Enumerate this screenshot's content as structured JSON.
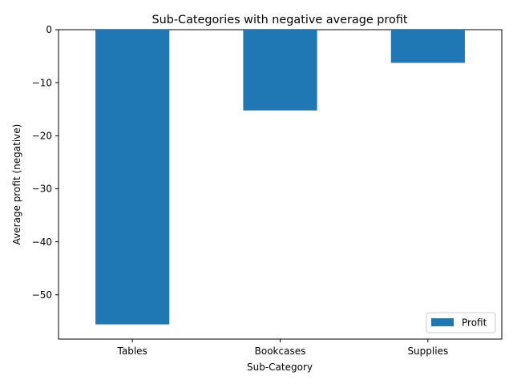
{
  "chart_data": {
    "type": "bar",
    "title": "Sub-Categories with negative average profit",
    "xlabel": "Sub-Category",
    "ylabel": "Average profit (negative)",
    "categories": [
      "Tables",
      "Bookcases",
      "Supplies"
    ],
    "series": [
      {
        "name": "Profit",
        "values": [
          -55.57,
          -15.23,
          -6.26
        ],
        "color": "#1f77b4"
      }
    ],
    "ylim": [
      -58.35,
      0
    ],
    "yticks": [
      0,
      -10,
      -20,
      -30,
      -40,
      -50
    ],
    "ytick_labels": [
      "0",
      "−10",
      "−20",
      "−30",
      "−40",
      "−50"
    ],
    "grid": false,
    "legend_position": "lower-right"
  }
}
